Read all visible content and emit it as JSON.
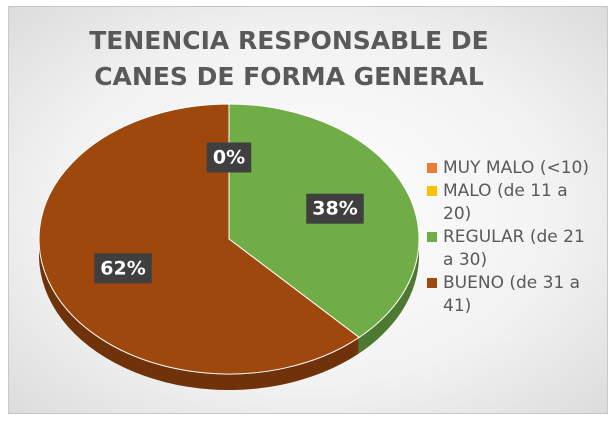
{
  "chart_data": {
    "type": "pie",
    "title": "TENENCIA RESPONSABLE DE CANES DE FORMA GENERAL",
    "categories": [
      "MUY MALO (<10)",
      "MALO (de 11 a 20)",
      "REGULAR (de 21 a 30)",
      "BUENO (de 31 a 41)"
    ],
    "values": [
      0,
      0,
      38,
      62
    ],
    "value_labels": [
      "0%",
      "0%",
      "38%",
      "62%"
    ],
    "colors": [
      "#ed7d31",
      "#ffc000",
      "#70ad47",
      "#9e480e"
    ],
    "legend": "right"
  }
}
